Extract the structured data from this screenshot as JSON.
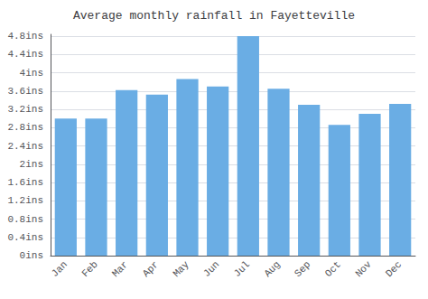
{
  "chart_data": {
    "type": "bar",
    "title": "Average monthly rainfall in Fayetteville",
    "categories": [
      "Jan",
      "Feb",
      "Mar",
      "Apr",
      "May",
      "Jun",
      "Jul",
      "Aug",
      "Sep",
      "Oct",
      "Nov",
      "Dec"
    ],
    "values": [
      3.0,
      3.0,
      3.62,
      3.52,
      3.86,
      3.7,
      4.8,
      3.65,
      3.3,
      2.86,
      3.1,
      3.32
    ],
    "color": "#6aade4",
    "ylim": [
      0,
      4.84
    ],
    "yticks": [
      {
        "value": 0,
        "label": "0ins"
      },
      {
        "value": 0.4,
        "label": "0.4ins"
      },
      {
        "value": 0.8,
        "label": "0.8ins"
      },
      {
        "value": 1.2,
        "label": "1.2ins"
      },
      {
        "value": 1.6,
        "label": "1.6ins"
      },
      {
        "value": 2.0,
        "label": "2ins"
      },
      {
        "value": 2.4,
        "label": "2.4ins"
      },
      {
        "value": 2.8,
        "label": "2.8ins"
      },
      {
        "value": 3.2,
        "label": "3.2ins"
      },
      {
        "value": 3.6,
        "label": "3.6ins"
      },
      {
        "value": 4.0,
        "label": "4ins"
      },
      {
        "value": 4.4,
        "label": "4.4ins"
      },
      {
        "value": 4.8,
        "label": "4.8ins"
      }
    ],
    "grid": true
  }
}
